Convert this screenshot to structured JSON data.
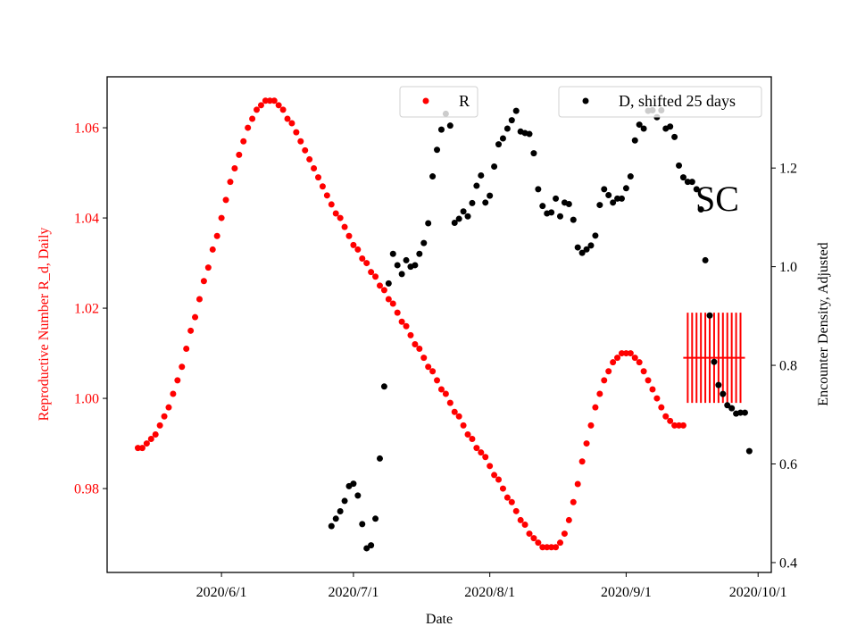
{
  "chart_data": {
    "type": "scatter",
    "xlabel": "Date",
    "ylabel_left": "Reproductive Number R_d, Daily",
    "ylabel_right": "Encounter Density, Adjusted",
    "xlim": [
      "2020-05-06",
      "2020-10-04"
    ],
    "ylim_left": [
      0.9614,
      1.0713
    ],
    "ylim_right": [
      0.38,
      1.385
    ],
    "x_ticks": [
      {
        "date": "2020-06-01",
        "label": "2020/6/1"
      },
      {
        "date": "2020-07-01",
        "label": "2020/7/1"
      },
      {
        "date": "2020-08-01",
        "label": "2020/8/1"
      },
      {
        "date": "2020-09-01",
        "label": "2020/9/1"
      },
      {
        "date": "2020-10-01",
        "label": "2020/10/1"
      }
    ],
    "y_ticks_left": [
      0.98,
      1.0,
      1.02,
      1.04,
      1.06
    ],
    "y_ticks_left_labels": [
      "0.98",
      "1.00",
      "1.02",
      "1.04",
      "1.06"
    ],
    "y_ticks_right": [
      0.4,
      0.6,
      0.8,
      1.0,
      1.2
    ],
    "y_ticks_right_labels": [
      "0.4",
      "0.6",
      "0.8",
      "1.0",
      "1.2"
    ],
    "grid": false,
    "annotation": "SC",
    "colors": {
      "R": "#ff0000",
      "D": "#000000",
      "left_axis": "#ff0000",
      "right_axis": "#000000"
    },
    "legends": [
      {
        "label": "R",
        "series": "R",
        "placement": "top-center"
      },
      {
        "label": "D, shifted 25 days",
        "series": "D",
        "placement": "top-right"
      }
    ],
    "series": [
      {
        "name": "R",
        "axis": "left",
        "color": "#ff0000",
        "x": [
          "2020-05-13",
          "2020-05-14",
          "2020-05-15",
          "2020-05-16",
          "2020-05-17",
          "2020-05-18",
          "2020-05-19",
          "2020-05-20",
          "2020-05-21",
          "2020-05-22",
          "2020-05-23",
          "2020-05-24",
          "2020-05-25",
          "2020-05-26",
          "2020-05-27",
          "2020-05-28",
          "2020-05-29",
          "2020-05-30",
          "2020-05-31",
          "2020-06-01",
          "2020-06-02",
          "2020-06-03",
          "2020-06-04",
          "2020-06-05",
          "2020-06-06",
          "2020-06-07",
          "2020-06-08",
          "2020-06-09",
          "2020-06-10",
          "2020-06-11",
          "2020-06-12",
          "2020-06-13",
          "2020-06-14",
          "2020-06-15",
          "2020-06-16",
          "2020-06-17",
          "2020-06-18",
          "2020-06-19",
          "2020-06-20",
          "2020-06-21",
          "2020-06-22",
          "2020-06-23",
          "2020-06-24",
          "2020-06-25",
          "2020-06-26",
          "2020-06-27",
          "2020-06-28",
          "2020-06-29",
          "2020-06-30",
          "2020-07-01",
          "2020-07-02",
          "2020-07-03",
          "2020-07-04",
          "2020-07-05",
          "2020-07-06",
          "2020-07-07",
          "2020-07-08",
          "2020-07-09",
          "2020-07-10",
          "2020-07-11",
          "2020-07-12",
          "2020-07-13",
          "2020-07-14",
          "2020-07-15",
          "2020-07-16",
          "2020-07-17",
          "2020-07-18",
          "2020-07-19",
          "2020-07-20",
          "2020-07-21",
          "2020-07-22",
          "2020-07-23",
          "2020-07-24",
          "2020-07-25",
          "2020-07-26",
          "2020-07-27",
          "2020-07-28",
          "2020-07-29",
          "2020-07-30",
          "2020-07-31",
          "2020-08-01",
          "2020-08-02",
          "2020-08-03",
          "2020-08-04",
          "2020-08-05",
          "2020-08-06",
          "2020-08-07",
          "2020-08-08",
          "2020-08-09",
          "2020-08-10",
          "2020-08-11",
          "2020-08-12",
          "2020-08-13",
          "2020-08-14",
          "2020-08-15",
          "2020-08-16",
          "2020-08-17",
          "2020-08-18",
          "2020-08-19",
          "2020-08-20",
          "2020-08-21",
          "2020-08-22",
          "2020-08-23",
          "2020-08-24",
          "2020-08-25",
          "2020-08-26",
          "2020-08-27",
          "2020-08-28",
          "2020-08-29",
          "2020-08-30",
          "2020-08-31",
          "2020-09-01",
          "2020-09-02",
          "2020-09-03",
          "2020-09-04",
          "2020-09-05",
          "2020-09-06",
          "2020-09-07",
          "2020-09-08",
          "2020-09-09",
          "2020-09-10",
          "2020-09-11",
          "2020-09-12",
          "2020-09-13",
          "2020-09-14"
        ],
        "y": [
          0.989,
          0.989,
          0.99,
          0.991,
          0.992,
          0.994,
          0.996,
          0.998,
          1.001,
          1.004,
          1.007,
          1.011,
          1.015,
          1.018,
          1.022,
          1.026,
          1.029,
          1.033,
          1.036,
          1.04,
          1.044,
          1.048,
          1.051,
          1.054,
          1.057,
          1.06,
          1.062,
          1.064,
          1.065,
          1.066,
          1.066,
          1.066,
          1.065,
          1.064,
          1.062,
          1.061,
          1.059,
          1.057,
          1.055,
          1.053,
          1.051,
          1.049,
          1.047,
          1.045,
          1.043,
          1.041,
          1.04,
          1.038,
          1.036,
          1.034,
          1.033,
          1.031,
          1.03,
          1.028,
          1.027,
          1.025,
          1.024,
          1.022,
          1.021,
          1.019,
          1.017,
          1.016,
          1.014,
          1.012,
          1.011,
          1.009,
          1.007,
          1.006,
          1.004,
          1.002,
          1.001,
          0.999,
          0.997,
          0.996,
          0.994,
          0.992,
          0.991,
          0.989,
          0.988,
          0.987,
          0.985,
          0.983,
          0.982,
          0.98,
          0.978,
          0.977,
          0.975,
          0.973,
          0.972,
          0.97,
          0.969,
          0.968,
          0.967,
          0.967,
          0.967,
          0.967,
          0.968,
          0.97,
          0.973,
          0.977,
          0.981,
          0.986,
          0.99,
          0.994,
          0.998,
          1.001,
          1.004,
          1.006,
          1.008,
          1.009,
          1.01,
          1.01,
          1.01,
          1.009,
          1.008,
          1.006,
          1.004,
          1.002,
          1.0,
          0.998,
          0.996,
          0.995,
          0.994,
          0.994,
          0.994
        ]
      },
      {
        "name": "D, shifted 25 days",
        "axis": "right",
        "color": "#000000",
        "x": [
          "2020-06-26",
          "2020-06-27",
          "2020-06-28",
          "2020-06-29",
          "2020-06-30",
          "2020-07-01",
          "2020-07-02",
          "2020-07-03",
          "2020-07-04",
          "2020-07-05",
          "2020-07-06",
          "2020-07-07",
          "2020-07-08",
          "2020-07-09",
          "2020-07-10",
          "2020-07-11",
          "2020-07-12",
          "2020-07-13",
          "2020-07-14",
          "2020-07-15",
          "2020-07-16",
          "2020-07-17",
          "2020-07-18",
          "2020-07-19",
          "2020-07-20",
          "2020-07-21",
          "2020-07-22",
          "2020-07-23",
          "2020-07-24",
          "2020-07-25",
          "2020-07-26",
          "2020-07-27",
          "2020-07-28",
          "2020-07-29",
          "2020-07-30",
          "2020-07-31",
          "2020-08-01",
          "2020-08-02",
          "2020-08-03",
          "2020-08-04",
          "2020-08-05",
          "2020-08-06",
          "2020-08-07",
          "2020-08-08",
          "2020-08-09",
          "2020-08-10",
          "2020-08-11",
          "2020-08-12",
          "2020-08-13",
          "2020-08-14",
          "2020-08-15",
          "2020-08-16",
          "2020-08-17",
          "2020-08-18",
          "2020-08-19",
          "2020-08-20",
          "2020-08-21",
          "2020-08-22",
          "2020-08-23",
          "2020-08-24",
          "2020-08-25",
          "2020-08-26",
          "2020-08-27",
          "2020-08-28",
          "2020-08-29",
          "2020-08-30",
          "2020-08-31",
          "2020-09-01",
          "2020-09-02",
          "2020-09-03",
          "2020-09-04",
          "2020-09-05",
          "2020-09-06",
          "2020-09-07",
          "2020-09-08",
          "2020-09-09",
          "2020-09-10",
          "2020-09-11",
          "2020-09-12",
          "2020-09-13",
          "2020-09-14",
          "2020-09-15",
          "2020-09-16",
          "2020-09-17",
          "2020-09-18",
          "2020-09-19",
          "2020-09-20",
          "2020-09-21",
          "2020-09-22",
          "2020-09-23",
          "2020-09-24",
          "2020-09-25",
          "2020-09-26",
          "2020-09-27",
          "2020-09-28",
          "2020-09-29"
        ],
        "y": [
          0.474,
          0.489,
          0.504,
          0.525,
          0.555,
          0.56,
          0.536,
          0.478,
          0.429,
          0.435,
          0.489,
          0.611,
          0.757,
          0.966,
          1.026,
          1.003,
          0.985,
          1.013,
          1.0,
          1.003,
          1.026,
          1.048,
          1.088,
          1.183,
          1.237,
          1.278,
          1.31,
          1.286,
          1.089,
          1.097,
          1.112,
          1.102,
          1.129,
          1.164,
          1.185,
          1.13,
          1.144,
          1.203,
          1.248,
          1.26,
          1.28,
          1.297,
          1.316,
          1.274,
          1.271,
          1.269,
          1.23,
          1.157,
          1.123,
          1.108,
          1.11,
          1.138,
          1.102,
          1.13,
          1.127,
          1.095,
          1.039,
          1.028,
          1.035,
          1.043,
          1.063,
          1.125,
          1.157,
          1.145,
          1.13,
          1.138,
          1.138,
          1.159,
          1.183,
          1.256,
          1.288,
          1.28,
          1.316,
          1.317,
          1.303,
          1.317,
          1.28,
          1.284,
          1.263,
          1.205,
          1.181,
          1.172,
          1.172,
          1.157,
          1.116,
          1.013,
          0.901,
          0.807,
          0.76,
          0.742,
          0.719,
          0.713,
          0.702,
          0.704,
          0.704,
          0.626
        ]
      }
    ],
    "errorbar": {
      "axis": "left",
      "color": "#ff0000",
      "x": [
        "2020-09-15",
        "2020-09-16",
        "2020-09-17",
        "2020-09-18",
        "2020-09-19",
        "2020-09-20",
        "2020-09-21",
        "2020-09-22",
        "2020-09-23",
        "2020-09-24",
        "2020-09-25",
        "2020-09-26",
        "2020-09-27"
      ],
      "value": 1.009,
      "lower": 0.999,
      "upper": 1.019
    }
  }
}
